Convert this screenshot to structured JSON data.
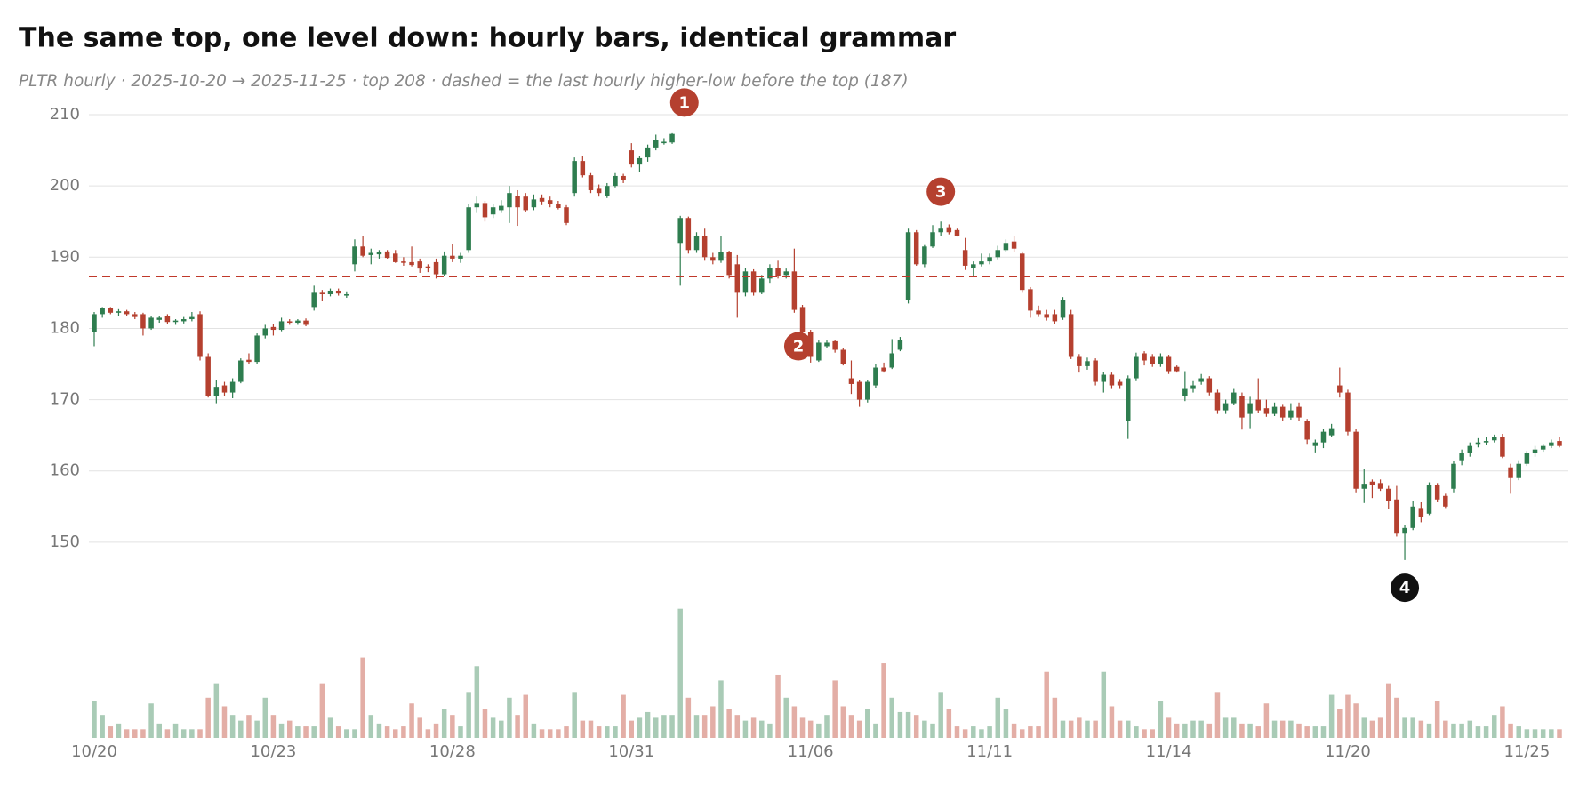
{
  "chart_data": {
    "type": "candlestick",
    "title": "The same top, one level down: hourly bars, identical grammar",
    "subtitle": "PLTR hourly · 2025-10-20 → 2025-11-25 · top 208 · dashed = the last hourly higher-low before the top (187)",
    "categories": [
      "10/20",
      null,
      null,
      null,
      null,
      null,
      null,
      null,
      null,
      null,
      null,
      null,
      null,
      null,
      null,
      null,
      null,
      null,
      null,
      null,
      null,
      null,
      "10/23",
      null,
      null,
      null,
      null,
      null,
      null,
      null,
      null,
      null,
      null,
      null,
      null,
      null,
      null,
      null,
      null,
      null,
      null,
      null,
      null,
      null,
      "10/28",
      null,
      null,
      null,
      null,
      null,
      null,
      null,
      null,
      null,
      null,
      null,
      null,
      null,
      null,
      null,
      null,
      null,
      null,
      null,
      null,
      null,
      "10/31",
      null,
      null,
      null,
      null,
      null,
      null,
      null,
      null,
      null,
      null,
      null,
      null,
      null,
      null,
      null,
      null,
      null,
      null,
      null,
      null,
      null,
      "11/06",
      null,
      null,
      null,
      null,
      null,
      null,
      null,
      null,
      null,
      null,
      null,
      null,
      null,
      null,
      null,
      null,
      null,
      null,
      null,
      null,
      null,
      "11/11",
      null,
      null,
      null,
      null,
      null,
      null,
      null,
      null,
      null,
      null,
      null,
      null,
      null,
      null,
      null,
      null,
      null,
      null,
      null,
      null,
      null,
      "11/14",
      null,
      null,
      null,
      null,
      null,
      null,
      null,
      null,
      null,
      null,
      null,
      null,
      null,
      null,
      null,
      null,
      null,
      null,
      null,
      null,
      null,
      "11/20",
      null,
      null,
      null,
      null,
      null,
      null,
      null,
      null,
      null,
      null,
      null,
      null,
      null,
      null,
      null,
      null,
      null,
      null,
      null,
      null,
      null,
      "11/25",
      null,
      null,
      null,
      null
    ],
    "open": [
      179.5,
      182,
      182.8,
      182.2,
      182.4,
      182,
      182,
      180,
      181.2,
      181.7,
      180.9,
      181,
      181.3,
      182,
      176,
      170.5,
      172,
      171,
      172.5,
      175.6,
      175.3,
      179,
      180.2,
      179.8,
      181,
      180.8,
      181.1,
      183,
      185,
      184.8,
      185.3,
      184.6,
      189,
      191.5,
      190.3,
      190.4,
      190.8,
      190.5,
      189.4,
      189.3,
      189.4,
      188.7,
      189.3,
      187.6,
      190.2,
      189.8,
      191,
      197,
      197.6,
      196,
      196.6,
      197,
      198.6,
      198.5,
      197,
      198.3,
      198,
      197.5,
      197,
      199,
      203.5,
      201.5,
      199.6,
      198.6,
      200,
      201.4,
      205,
      203,
      204,
      205.4,
      206,
      206.1,
      192,
      195.5,
      191,
      193,
      190,
      189.5,
      190.7,
      189,
      185,
      188,
      185,
      187,
      188.5,
      187.5,
      188,
      183,
      179.5,
      175.5,
      177.5,
      178.2,
      177,
      173,
      172.5,
      170,
      172,
      174.5,
      174.5,
      177,
      184,
      193.5,
      189,
      191.5,
      193.5,
      194.2,
      193.8,
      191,
      188.5,
      189,
      189.4,
      190,
      191,
      192.2,
      190.5,
      185.5,
      182.5,
      182,
      182,
      181.5,
      182,
      176,
      174.7,
      175.5,
      172.5,
      173.5,
      172.5,
      167,
      173,
      176.5,
      176,
      175,
      176,
      174.6,
      170.5,
      171.5,
      172.5,
      173,
      171,
      168.5,
      169.5,
      170.5,
      168,
      170,
      168.8,
      168,
      169,
      167.5,
      169,
      167,
      163.5,
      164,
      165,
      172,
      171,
      165.5,
      157.5,
      158.5,
      158.3,
      157.5,
      156,
      151.2,
      152,
      154.8,
      154,
      158,
      156.5,
      157.5,
      161.5,
      162.5,
      163.8,
      164,
      164.3,
      164.8,
      160.5,
      159,
      161,
      162.5,
      163,
      163.5,
      164.2
    ],
    "high": [
      182.3,
      183,
      183,
      182.7,
      182.6,
      182.3,
      182.2,
      181.8,
      181.7,
      182,
      181.3,
      181.6,
      182.3,
      182.4,
      176.5,
      172.8,
      172.5,
      173,
      175.8,
      176.5,
      179.3,
      180.5,
      180.6,
      181.5,
      181.3,
      181.3,
      181.4,
      186,
      185.4,
      185.6,
      185.6,
      185.2,
      192.5,
      193,
      191.2,
      191,
      191,
      191,
      190,
      191.5,
      189.8,
      189,
      189.8,
      190.8,
      191.8,
      190.6,
      197.5,
      198.5,
      197.9,
      197.5,
      198,
      200,
      199.4,
      199,
      198.8,
      198.8,
      198.5,
      197.9,
      197.3,
      204,
      204.2,
      201.8,
      200.2,
      200.4,
      201.8,
      201.7,
      206,
      204.2,
      205.8,
      207.2,
      206.7,
      207.4,
      195.8,
      195.7,
      193.5,
      194,
      190.6,
      193,
      190.9,
      190.3,
      188.5,
      188.3,
      187.5,
      189,
      189.5,
      188.4,
      191.2,
      183.3,
      179.8,
      178.3,
      178.3,
      178.4,
      177.3,
      175.5,
      172.8,
      172.8,
      175,
      175.2,
      178.5,
      178.8,
      194,
      193.8,
      191.7,
      194.5,
      195,
      194.6,
      194,
      192.7,
      189.4,
      190.5,
      190.5,
      191.6,
      192.5,
      193,
      190.8,
      185.8,
      183.2,
      182.6,
      182.6,
      184.4,
      182.6,
      176.4,
      175.9,
      175.8,
      173.9,
      173.8,
      172.9,
      173.4,
      176.6,
      176.8,
      176.4,
      176.5,
      176.3,
      174.8,
      174,
      172.6,
      173.6,
      173.3,
      171.4,
      170,
      171.5,
      171,
      170.4,
      173,
      170,
      169.6,
      169.4,
      169.5,
      169.6,
      167.3,
      164.4,
      165.9,
      166.6,
      174.5,
      171.4,
      165.9,
      160.3,
      158.8,
      158.8,
      157.9,
      157.9,
      152.4,
      155.8,
      155.6,
      158.4,
      158.3,
      156.8,
      161.4,
      163,
      164,
      164.6,
      164.8,
      165.1,
      165.2,
      161,
      161.5,
      162.8,
      163.5,
      163.8,
      164.4,
      164.8
    ],
    "low": [
      177.5,
      181.5,
      182,
      181.8,
      181.8,
      181.3,
      179,
      179.8,
      180.8,
      180.6,
      180.5,
      180.7,
      181,
      175.5,
      170.3,
      169.5,
      170.5,
      170.2,
      172.3,
      175,
      175,
      178.6,
      179,
      179.6,
      180.5,
      180.5,
      180.3,
      182.5,
      183.8,
      184.5,
      184.6,
      184.3,
      188,
      190,
      189,
      189.8,
      189.8,
      189.2,
      188.8,
      188.7,
      187.8,
      187.9,
      187,
      187.4,
      189.3,
      189.2,
      190.6,
      196.2,
      195,
      195.5,
      196.2,
      194.8,
      194.4,
      196.4,
      196.6,
      197.3,
      197,
      196.7,
      194.5,
      198.5,
      201.2,
      199,
      198.5,
      198.3,
      199.8,
      200.4,
      202.6,
      202,
      203.4,
      205,
      205.8,
      205.9,
      186,
      190.5,
      190.6,
      189.5,
      189,
      189.2,
      187,
      181.5,
      184.5,
      184.6,
      184.8,
      186.4,
      187,
      187,
      182.2,
      179.2,
      175.2,
      175.3,
      177.2,
      176.6,
      174.8,
      170.8,
      169,
      169.6,
      171.6,
      173.8,
      174.3,
      176.8,
      183.5,
      188.8,
      188.6,
      191.3,
      193,
      193.2,
      192.9,
      188.2,
      187.2,
      188.7,
      189,
      189.7,
      190.7,
      190.7,
      185,
      181.5,
      181.6,
      181.1,
      180.6,
      181.2,
      175.7,
      173.8,
      174.2,
      172,
      171,
      171.5,
      171.5,
      164.5,
      172.6,
      174.8,
      174.6,
      174.6,
      173.6,
      173.8,
      169.8,
      171,
      172.1,
      170.6,
      168,
      168,
      169.2,
      165.8,
      166,
      168.2,
      167.6,
      167.7,
      167,
      167.2,
      167,
      163.8,
      162.6,
      163.2,
      164.8,
      170.3,
      165,
      157,
      155.5,
      156.2,
      157.2,
      154.7,
      150.8,
      147.5,
      151.7,
      152.8,
      153.8,
      155.6,
      154.8,
      157,
      160.8,
      162,
      163.3,
      163.7,
      164,
      161.8,
      156.8,
      158.7,
      160.7,
      162,
      162.7,
      163.2,
      163.3
    ],
    "close": [
      182,
      182.8,
      182.2,
      182.4,
      182,
      181.6,
      180,
      181.5,
      181.5,
      180.9,
      181.1,
      181.3,
      181.6,
      176,
      170.5,
      171.8,
      171,
      172.5,
      175.5,
      175.3,
      179,
      180,
      179.8,
      181,
      180.8,
      181.1,
      180.5,
      185,
      184.8,
      185.3,
      184.9,
      184.8,
      191.5,
      190.2,
      190.6,
      190.7,
      189.9,
      189.3,
      189.2,
      188.9,
      188.4,
      188.5,
      187.6,
      190.2,
      189.8,
      190.2,
      197,
      197.6,
      195.6,
      197,
      197.2,
      199,
      197,
      196.6,
      198.1,
      197.8,
      197.4,
      196.9,
      194.8,
      203.5,
      201.5,
      199.4,
      199,
      200,
      201.4,
      200.8,
      203,
      203.9,
      205.4,
      206.4,
      206.2,
      207.3,
      195.5,
      191,
      193,
      190,
      189.5,
      190.7,
      187.5,
      185,
      188,
      185,
      187,
      188.5,
      187.4,
      188,
      182.6,
      179.5,
      176,
      178,
      178,
      177,
      175,
      172.2,
      170,
      172.5,
      174.5,
      174,
      176.5,
      178.4,
      193.5,
      189,
      191.5,
      193.5,
      194,
      193.5,
      193,
      188.8,
      189,
      189.4,
      190,
      191,
      192,
      191.2,
      185.4,
      182.5,
      182,
      181.5,
      181,
      184,
      176,
      174.7,
      175.4,
      172.5,
      173.5,
      172,
      172,
      173,
      176,
      175.5,
      175,
      176,
      174,
      174,
      171.5,
      172,
      173,
      171,
      168.5,
      169.5,
      171,
      167.5,
      169.5,
      168.5,
      168,
      169,
      167.5,
      168.5,
      167.5,
      164.4,
      164,
      165.5,
      166,
      171,
      165.5,
      157.5,
      158.2,
      158,
      157.5,
      155.8,
      151.2,
      152,
      155,
      153.5,
      158,
      156,
      155,
      161,
      162.5,
      163.5,
      164,
      164.2,
      164.8,
      162,
      159,
      161,
      162.5,
      163,
      163.5,
      164,
      163.5
    ],
    "volume": [
      13,
      8,
      4,
      5,
      3,
      3,
      3,
      12,
      5,
      3,
      5,
      3,
      3,
      3,
      14,
      19,
      11,
      8,
      6,
      8,
      6,
      14,
      8,
      5,
      6,
      4,
      4,
      4,
      19,
      7,
      4,
      3,
      3,
      28,
      8,
      5,
      4,
      3,
      4,
      12,
      7,
      3,
      5,
      10,
      8,
      4,
      16,
      25,
      10,
      7,
      6,
      14,
      8,
      15,
      5,
      3,
      3,
      3,
      4,
      16,
      6,
      6,
      4,
      4,
      4,
      15,
      6,
      7,
      9,
      7,
      8,
      8,
      45,
      14,
      8,
      8,
      11,
      20,
      10,
      8,
      6,
      7,
      6,
      5,
      22,
      14,
      11,
      7,
      6,
      5,
      8,
      20,
      11,
      8,
      6,
      10,
      5,
      26,
      14,
      9,
      9,
      8,
      6,
      5,
      16,
      10,
      4,
      3,
      4,
      3,
      4,
      14,
      10,
      5,
      3,
      4,
      4,
      23,
      14,
      6,
      6,
      7,
      6,
      6,
      23,
      11,
      6,
      6,
      4,
      3,
      3,
      13,
      7,
      5,
      5,
      6,
      6,
      5,
      16,
      7,
      7,
      5,
      5,
      4,
      12,
      6,
      6,
      6,
      5,
      4,
      4,
      4,
      15,
      10,
      15,
      12,
      7,
      6,
      7,
      19,
      14,
      7,
      7,
      6,
      5,
      13,
      6,
      5,
      5,
      6,
      4,
      4,
      8,
      11,
      5,
      4,
      3,
      3,
      3,
      3,
      3
    ],
    "up_color": "#2e7d4f",
    "down_color": "#b5402f",
    "volume_up_color": "#a9cbb6",
    "volume_down_color": "#e3aea6",
    "ylim": [
      140,
      212
    ],
    "yticks": [
      150,
      160,
      170,
      180,
      190,
      200,
      210
    ],
    "volume_ylim": [
      0,
      48
    ],
    "grid": true,
    "hline": {
      "value": 187.3,
      "color": "#c0392b",
      "style": "dashed"
    },
    "annotations": [
      {
        "text": "1",
        "x": 72.5,
        "y": 211.7,
        "color": "#b5402f"
      },
      {
        "text": "2",
        "x": 86.5,
        "y": 177.5,
        "color": "#b5402f"
      },
      {
        "text": "3",
        "x": 104,
        "y": 199.2,
        "color": "#b5402f"
      },
      {
        "text": "4",
        "x": 161,
        "y": 143.6,
        "color": "#111111"
      }
    ]
  }
}
